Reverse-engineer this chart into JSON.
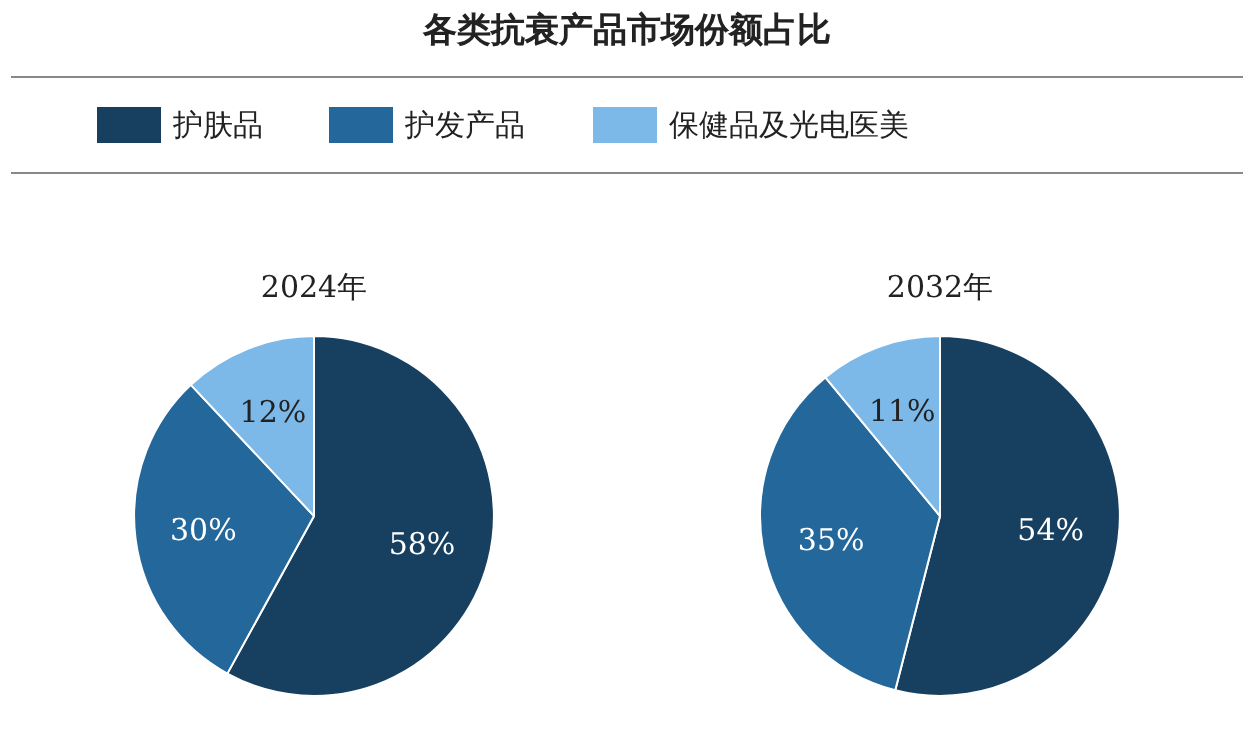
{
  "chart_data": [
    {
      "type": "pie",
      "title": "各类抗衰产品市场份额占比",
      "subtitle": "2024年",
      "categories": [
        "护肤品",
        "护发产品",
        "保健品及光电医美"
      ],
      "values": [
        58,
        30,
        12
      ],
      "colors": [
        "#173f5f",
        "#23679b",
        "#7cb9e8"
      ],
      "value_labels": [
        "58%",
        "30%",
        "12%"
      ],
      "legend": "top"
    },
    {
      "type": "pie",
      "subtitle": "2032年",
      "categories": [
        null,
        null,
        null
      ],
      "values": [
        54,
        35,
        11
      ],
      "colors": [
        "#173f5f",
        "#23679b",
        "#7cb9e8"
      ],
      "value_labels": [
        "54%",
        "35%",
        "11%"
      ]
    }
  ]
}
